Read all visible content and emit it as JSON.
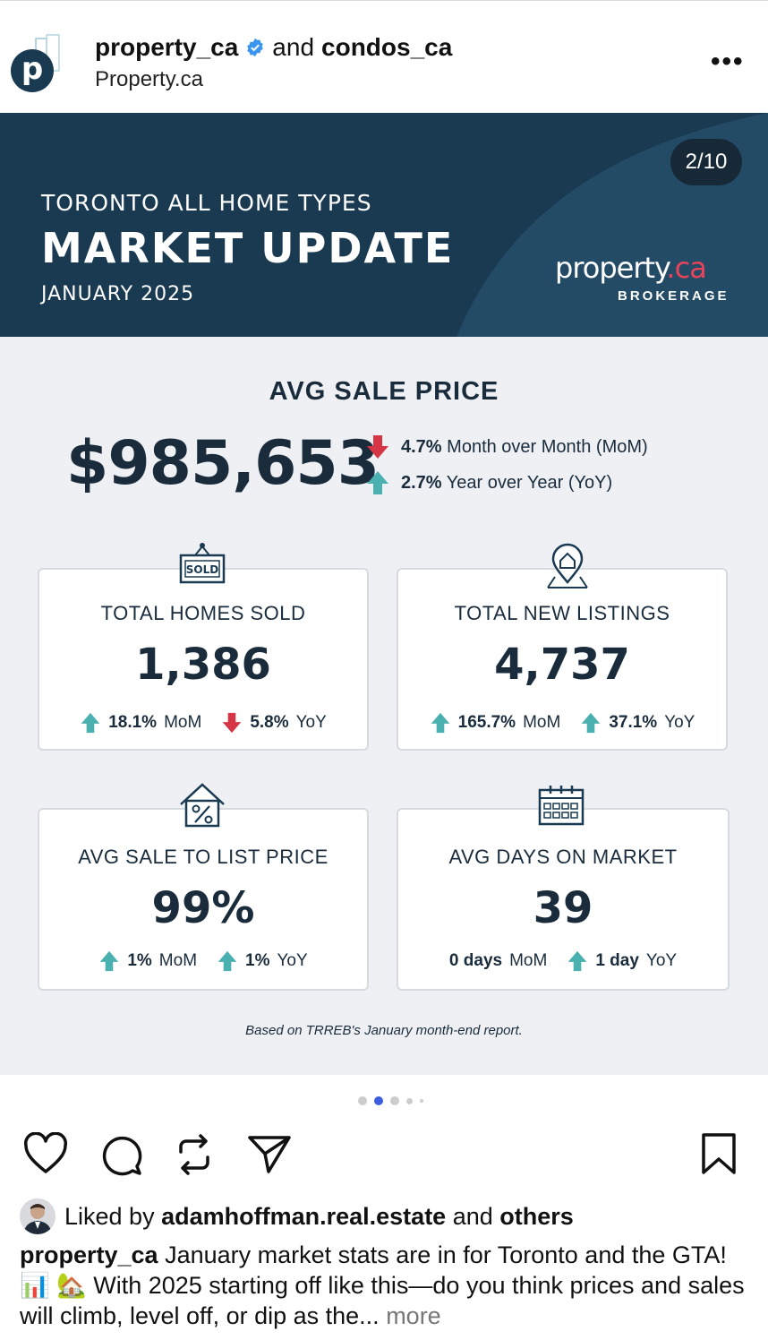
{
  "post": {
    "account": "property_ca",
    "connector": "and",
    "collab": "condos_ca",
    "subtitle": "Property.ca",
    "more_menu": "•••"
  },
  "banner": {
    "counter": "2/10",
    "line1": "TORONTO ALL HOME TYPES",
    "line2": "MARKET UPDATE",
    "line3": "JANUARY 2025",
    "brand_main": "property",
    "brand_dot": ".ca",
    "brokerage": "BROKERAGE"
  },
  "avg_sale": {
    "title": "AVG SALE PRICE",
    "price": "$985,653",
    "mom_value": "4.7%",
    "mom_label": "Month over Month (MoM)",
    "yoy_value": "2.7%",
    "yoy_label": "Year over Year (YoY)"
  },
  "cards": {
    "sold": {
      "title": "TOTAL HOMES SOLD",
      "value": "1,386",
      "mom": "18.1%",
      "mom_label": "MoM",
      "yoy": "5.8%",
      "yoy_label": "YoY",
      "icon_text": "SOLD"
    },
    "listings": {
      "title": "TOTAL NEW LISTINGS",
      "value": "4,737",
      "mom": "165.7%",
      "mom_label": "MoM",
      "yoy": "37.1%",
      "yoy_label": "YoY"
    },
    "ratio": {
      "title": "AVG SALE TO LIST PRICE",
      "value": "99%",
      "mom": "1%",
      "mom_label": "MoM",
      "yoy": "1%",
      "yoy_label": "YoY"
    },
    "days": {
      "title": "AVG DAYS ON MARKET",
      "value": "39",
      "mom": "0 days",
      "mom_label": "MoM",
      "yoy": "1 day",
      "yoy_label": "YoY"
    }
  },
  "note": "Based on TRREB's January month-end report.",
  "engagement": {
    "liked_prefix": "Liked by",
    "liked_user": "adamhoffman.real.estate",
    "liked_and": "and",
    "liked_others": "others"
  },
  "caption": {
    "user": "property_ca",
    "text": "January market stats are in for Toronto and the GTA! 📊 🏡 With 2025 starting off like this—do you think prices and sales will climb, level off, or dip as the...",
    "more": "more"
  },
  "colors": {
    "navy": "#1a3a52",
    "up": "#4ab0b0",
    "down": "#d63545",
    "accent": "#e8435a"
  },
  "icons": [
    "heart-icon",
    "comment-icon",
    "repost-icon",
    "share-icon",
    "bookmark-icon"
  ]
}
